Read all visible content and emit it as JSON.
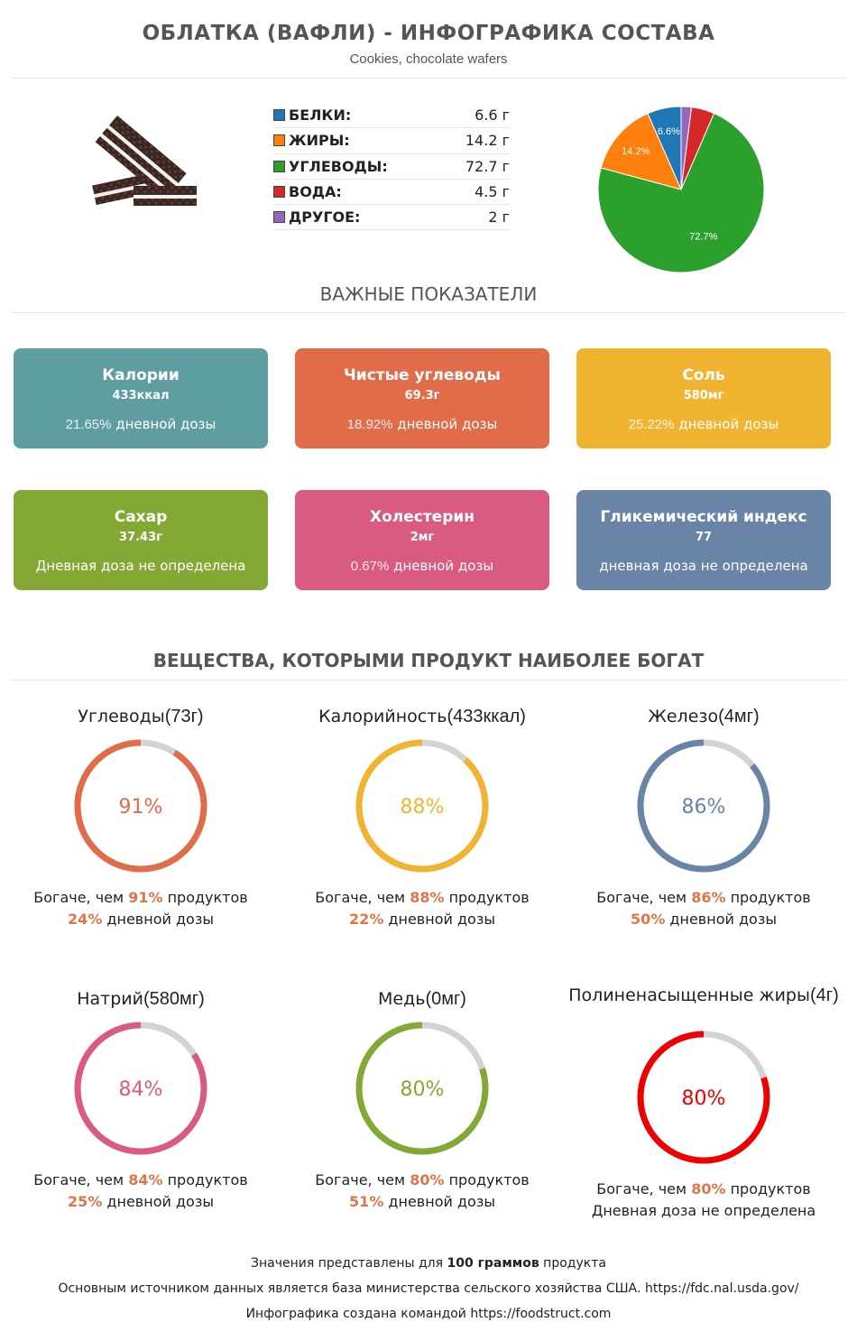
{
  "header": {
    "title": "ОБЛАТКА (ВАФЛИ) - ИНФОГРАФИКА СОСТАВА",
    "subtitle": "Cookies, chocolate wafers"
  },
  "macros": [
    {
      "label": "БЕЛКИ:",
      "value": "6.6 г",
      "color": "#1f77b4"
    },
    {
      "label": "ЖИРЫ:",
      "value": "14.2 г",
      "color": "#ff7f0e"
    },
    {
      "label": "УГЛЕВОДЫ:",
      "value": "72.7 г",
      "color": "#2ca02c"
    },
    {
      "label": "ВОДА:",
      "value": "4.5 г",
      "color": "#d62728"
    },
    {
      "label": "ДРУГОЕ:",
      "value": "2 г",
      "color": "#9467bd"
    }
  ],
  "chart_data": {
    "type": "pie",
    "slices": [
      {
        "name": "Белки",
        "value": 6.6,
        "label": "6.6%",
        "color": "#1f77b4"
      },
      {
        "name": "Жиры",
        "value": 14.2,
        "label": "14.2%",
        "color": "#ff7f0e"
      },
      {
        "name": "Углеводы",
        "value": 72.7,
        "label": "72.7%",
        "color": "#2ca02c"
      },
      {
        "name": "Вода",
        "value": 4.5,
        "label": "",
        "color": "#d62728"
      },
      {
        "name": "Другое",
        "value": 2,
        "label": "",
        "color": "#9467bd"
      }
    ]
  },
  "sections": {
    "important": "ВАЖНЫЕ ПОКАЗАТЕЛИ",
    "rich": "ВЕЩЕСТВА, КОТОРЫМИ ПРОДУКТ НАИБОЛЕЕ БОГАТ"
  },
  "cards": [
    {
      "title": "Калории",
      "value": "433ккал",
      "pct": "21.65%",
      "desc": " дневной дозы",
      "color": "#5f9ea0"
    },
    {
      "title": "Чистые углеводы",
      "value": "69.3г",
      "pct": "18.92%",
      "desc": " дневной дозы",
      "color": "#e06c4a"
    },
    {
      "title": "Соль",
      "value": "580мг",
      "pct": "25.22%",
      "desc": " дневной дозы",
      "color": "#f0b431"
    },
    {
      "title": "Сахар",
      "value": "37.43г",
      "pct": "",
      "desc": "Дневная доза не определена",
      "color": "#83a834"
    },
    {
      "title": "Холестерин",
      "value": "2мг",
      "pct": "0.67%",
      "desc": " дневной дозы",
      "color": "#d95b82"
    },
    {
      "title": "Гликемический индекс",
      "value": "77",
      "pct": "",
      "desc": "дневная доза не определена",
      "color": "#6a84a8"
    }
  ],
  "rings": [
    {
      "name": "Углеводы",
      "amount": "(73г)",
      "percent": 91,
      "label": "91%",
      "color": "#e06c4a",
      "richer_pre": "Богаче, чем ",
      "richer_pct": "91%",
      "richer_post": " продуктов",
      "daily_pct": "24%",
      "daily_post": " дневной дозы"
    },
    {
      "name": "Калорийность",
      "amount": "(433ккал)",
      "percent": 88,
      "label": "88%",
      "color": "#f0b431",
      "richer_pre": "Богаче, чем ",
      "richer_pct": "88%",
      "richer_post": " продуктов",
      "daily_pct": "22%",
      "daily_post": " дневной дозы"
    },
    {
      "name": "Железо",
      "amount": "(4мг)",
      "percent": 86,
      "label": "86%",
      "color": "#6a84a8",
      "richer_pre": "Богаче, чем ",
      "richer_pct": "86%",
      "richer_post": " продуктов",
      "daily_pct": "50%",
      "daily_post": " дневной дозы"
    },
    {
      "name": "Натрий",
      "amount": "(580мг)",
      "percent": 84,
      "label": "84%",
      "color": "#d95b82",
      "richer_pre": "Богаче, чем ",
      "richer_pct": "84%",
      "richer_post": " продуктов",
      "daily_pct": "25%",
      "daily_post": " дневной дозы"
    },
    {
      "name": "Медь",
      "amount": "(0мг)",
      "percent": 80,
      "label": "80%",
      "color": "#83a834",
      "richer_pre": "Богаче, чем ",
      "richer_pct": "80%",
      "richer_post": " продуктов",
      "daily_pct": "51%",
      "daily_post": " дневной дозы"
    },
    {
      "name": "Полиненасыщенные жиры",
      "amount": "(4г)",
      "percent": 80,
      "label": "80%",
      "color": "#ee0000",
      "richer_pre": "Богаче, чем ",
      "richer_pct": "80%",
      "richer_post": " продуктов",
      "daily_pct": "",
      "daily_post": "Дневная доза не определена"
    }
  ],
  "footer": {
    "line1_pre": "Значения представлены для ",
    "line1_bold": "100 граммов",
    "line1_post": " продукта",
    "line2": "Основным источником данных является база министерства сельского хозяйства США. https://fdc.nal.usda.gov/",
    "line3": "Инфографика создана командой https://foodstruct.com"
  }
}
